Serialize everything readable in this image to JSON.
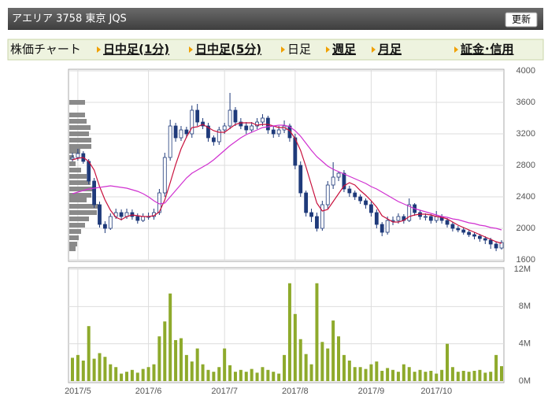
{
  "header": {
    "title": "アエリア 3758 東京 JQS",
    "button": "更新"
  },
  "nav": {
    "label": "株価チャート",
    "items": [
      "日中足(1分)",
      "日中足(5分)",
      "日足",
      "週足",
      "月足",
      "証金･信用"
    ]
  },
  "chart_data": [
    {
      "type": "candlestick",
      "up_color": "#ffffff",
      "down_color": "#1f3a7a",
      "edge_color": "#1f3a7a",
      "open": [
        2880,
        2900,
        2950,
        2850,
        2600,
        2300,
        2050,
        2000,
        2150,
        2200,
        2150,
        2200,
        2150,
        2100,
        2150,
        2150,
        2200,
        2450,
        2900,
        3300,
        3150,
        3250,
        3200,
        3500,
        3350,
        3300,
        3150,
        3100,
        3250,
        3300,
        3500,
        3350,
        3300,
        3250,
        3300,
        3350,
        3400,
        3250,
        3200,
        3250,
        3300,
        3150,
        2800,
        2450,
        2200,
        2150,
        2000,
        2300,
        2550,
        2650,
        2700,
        2500,
        2450,
        2400,
        2350,
        2300,
        2200,
        2050,
        1950,
        2100,
        2100,
        2150,
        2100,
        2300,
        2200,
        2150,
        2150,
        2100,
        2150,
        2100,
        2050,
        2000,
        1980,
        1950,
        1920,
        1900,
        1870,
        1850,
        1800,
        1750
      ],
      "high": [
        2960,
        3010,
        2980,
        2880,
        2640,
        2340,
        2090,
        2190,
        2250,
        2240,
        2250,
        2240,
        2190,
        2190,
        2200,
        2250,
        2500,
        2960,
        3380,
        3340,
        3300,
        3290,
        3560,
        3580,
        3400,
        3340,
        3180,
        3290,
        3340,
        3720,
        3540,
        3400,
        3350,
        3350,
        3400,
        3450,
        3430,
        3300,
        3300,
        3370,
        3330,
        3200,
        2850,
        2480,
        2250,
        2200,
        2350,
        2600,
        2840,
        2720,
        2740,
        2540,
        2480,
        2430,
        2380,
        2340,
        2240,
        2080,
        2150,
        2150,
        2190,
        2180,
        2380,
        2320,
        2230,
        2190,
        2180,
        2220,
        2180,
        2130,
        2080,
        2030,
        2010,
        1980,
        1950,
        1930,
        1900,
        1880,
        1830,
        1850
      ],
      "low": [
        2850,
        2860,
        2820,
        2560,
        2260,
        2010,
        1940,
        1980,
        2120,
        2100,
        2120,
        2110,
        2060,
        2080,
        2110,
        2110,
        2170,
        2400,
        2860,
        3100,
        3110,
        3150,
        3150,
        3300,
        3260,
        3100,
        3050,
        3060,
        3200,
        3260,
        3300,
        3260,
        3200,
        3220,
        3260,
        3300,
        3200,
        3150,
        3160,
        3210,
        3100,
        2750,
        2400,
        2150,
        2080,
        1960,
        1970,
        2250,
        2500,
        2600,
        2460,
        2400,
        2360,
        2310,
        2250,
        2150,
        2000,
        1900,
        1920,
        2040,
        2060,
        2060,
        2080,
        2160,
        2110,
        2100,
        2060,
        2070,
        2060,
        2010,
        1960,
        1950,
        1920,
        1890,
        1860,
        1830,
        1800,
        1740,
        1710,
        1730
      ],
      "close": [
        2900,
        2950,
        2850,
        2600,
        2300,
        2050,
        2000,
        2150,
        2200,
        2150,
        2200,
        2150,
        2100,
        2150,
        2150,
        2200,
        2450,
        2900,
        3300,
        3150,
        3250,
        3200,
        3500,
        3350,
        3300,
        3150,
        3100,
        3250,
        3300,
        3500,
        3350,
        3300,
        3250,
        3300,
        3350,
        3400,
        3250,
        3200,
        3250,
        3300,
        3150,
        2800,
        2450,
        2200,
        2150,
        2000,
        2300,
        2550,
        2650,
        2700,
        2500,
        2450,
        2400,
        2350,
        2300,
        2200,
        2050,
        1950,
        2100,
        2100,
        2150,
        2100,
        2300,
        2200,
        2150,
        2150,
        2100,
        2150,
        2100,
        2050,
        2000,
        1980,
        1950,
        1920,
        1900,
        1870,
        1850,
        1800,
        1750,
        1820
      ],
      "series": [
        {
          "color": "#c8103c",
          "values": [
            2870,
            2890,
            2900,
            2850,
            2740,
            2530,
            2360,
            2230,
            2140,
            2110,
            2150,
            2170,
            2160,
            2150,
            2150,
            2160,
            2210,
            2360,
            2580,
            2810,
            3010,
            3160,
            3280,
            3290,
            3320,
            3280,
            3240,
            3220,
            3220,
            3270,
            3320,
            3340,
            3340,
            3340,
            3310,
            3320,
            3320,
            3300,
            3280,
            3280,
            3240,
            3140,
            2990,
            2780,
            2550,
            2320,
            2220,
            2240,
            2340,
            2440,
            2540,
            2580,
            2550,
            2480,
            2420,
            2350,
            2270,
            2160,
            2120,
            2080,
            2080,
            2100,
            2150,
            2170,
            2180,
            2180,
            2170,
            2150,
            2140,
            2120,
            2080,
            2040,
            2010,
            1980,
            1950,
            1920,
            1890,
            1860,
            1830,
            1810
          ]
        },
        {
          "color": "#d030d0",
          "values": [
            2440,
            2460,
            2480,
            2500,
            2510,
            2520,
            2530,
            2540,
            2530,
            2520,
            2510,
            2490,
            2470,
            2440,
            2400,
            2350,
            2310,
            2320,
            2400,
            2480,
            2560,
            2640,
            2700,
            2740,
            2780,
            2820,
            2870,
            2930,
            2990,
            3050,
            3100,
            3150,
            3190,
            3220,
            3250,
            3280,
            3290,
            3300,
            3310,
            3310,
            3290,
            3240,
            3170,
            3080,
            2990,
            2910,
            2850,
            2790,
            2750,
            2720,
            2690,
            2660,
            2630,
            2600,
            2570,
            2530,
            2500,
            2460,
            2420,
            2380,
            2340,
            2310,
            2280,
            2250,
            2230,
            2210,
            2190,
            2170,
            2150,
            2140,
            2120,
            2110,
            2090,
            2070,
            2060,
            2040,
            2030,
            2010,
            2000,
            1980
          ]
        }
      ],
      "price_volume": {
        "color": "#8a8a8a",
        "prices": [
          3600,
          3520,
          3440,
          3360,
          3280,
          3200,
          3120,
          3040,
          2980,
          2900,
          2820,
          2740,
          2660,
          2580,
          2500,
          2420,
          2360,
          2280,
          2200,
          2120,
          2040,
          1960,
          1880,
          1800,
          1740
        ],
        "values": [
          20,
          0,
          20,
          22,
          27,
          25,
          28,
          28,
          14,
          6,
          8,
          15,
          22,
          27,
          30,
          28,
          22,
          37,
          35,
          25,
          20,
          15,
          12,
          10,
          8
        ]
      },
      "ylim": [
        1600,
        4000
      ],
      "yticks": [
        1600,
        2000,
        2400,
        2800,
        3200,
        3600,
        4000
      ],
      "grid": true
    },
    {
      "type": "bar",
      "color": "#8eaa2c",
      "values": [
        2.5,
        2.8,
        2.2,
        5.9,
        2.4,
        3.0,
        2.6,
        1.8,
        1.5,
        0.8,
        1.0,
        1.2,
        0.9,
        1.3,
        1.5,
        1.8,
        4.8,
        6.4,
        9.4,
        4.4,
        4.6,
        2.8,
        2.1,
        3.5,
        1.8,
        1.2,
        1.0,
        1.5,
        3.5,
        1.7,
        1.0,
        1.2,
        1.0,
        1.3,
        0.9,
        1.5,
        1.2,
        1.0,
        0.8,
        2.8,
        10.5,
        7.2,
        4.5,
        2.9,
        1.8,
        10.5,
        4.2,
        3.5,
        6.5,
        4.8,
        2.8,
        2.2,
        1.5,
        1.5,
        1.3,
        1.8,
        2.1,
        1.1,
        1.4,
        1.2,
        1.0,
        1.8,
        1.5,
        1.0,
        1.2,
        1.0,
        1.1,
        0.8,
        1.2,
        4.0,
        1.5,
        1.0,
        1.1,
        1.0,
        1.1,
        1.2,
        0.9,
        1.0,
        2.8,
        1.6
      ],
      "ylim": [
        0,
        12
      ],
      "yticks": [
        {
          "value": 0,
          "label": "0M"
        },
        {
          "value": 4,
          "label": "4M"
        },
        {
          "value": 8,
          "label": "8M"
        },
        {
          "value": 12,
          "label": "12M"
        }
      ],
      "xticks": [
        {
          "value": 1,
          "label": "2017/5"
        },
        {
          "value": 14,
          "label": "2017/6"
        },
        {
          "value": 28,
          "label": "2017/7"
        },
        {
          "value": 41,
          "label": "2017/8"
        },
        {
          "value": 55,
          "label": "2017/9"
        },
        {
          "value": 67,
          "label": "2017/10"
        }
      ],
      "grid": true
    }
  ]
}
